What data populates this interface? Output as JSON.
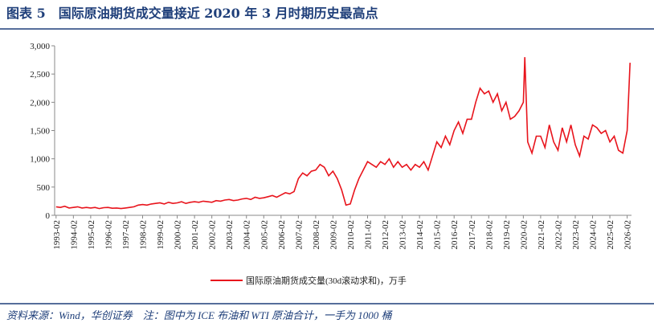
{
  "chart_data": {
    "type": "line",
    "title": "图表 5　国际原油期货成交量接近 2020 年 3 月时期历史最高点",
    "source": "资料来源：Wind，华创证券　注：图中为 ICE 布油和 WTI 原油合计，一手为 1000 桶",
    "x": [
      "1993-02",
      "1993-05",
      "1993-08",
      "1993-11",
      "1994-02",
      "1994-05",
      "1994-08",
      "1994-11",
      "1995-02",
      "1995-05",
      "1995-08",
      "1995-11",
      "1996-02",
      "1996-05",
      "1996-08",
      "1996-11",
      "1997-02",
      "1997-05",
      "1997-08",
      "1997-11",
      "1998-02",
      "1998-05",
      "1998-08",
      "1998-11",
      "1999-02",
      "1999-05",
      "1999-08",
      "1999-11",
      "2000-02",
      "2000-05",
      "2000-08",
      "2000-11",
      "2001-02",
      "2001-05",
      "2001-08",
      "2001-11",
      "2002-02",
      "2002-05",
      "2002-08",
      "2002-11",
      "2003-02",
      "2003-05",
      "2003-08",
      "2003-11",
      "2004-02",
      "2004-05",
      "2004-08",
      "2004-11",
      "2005-02",
      "2005-05",
      "2005-08",
      "2005-11",
      "2006-02",
      "2006-05",
      "2006-08",
      "2006-11",
      "2007-02",
      "2007-05",
      "2007-08",
      "2007-11",
      "2008-02",
      "2008-05",
      "2008-08",
      "2008-11",
      "2009-02",
      "2009-05",
      "2009-08",
      "2009-11",
      "2010-02",
      "2010-05",
      "2010-08",
      "2010-11",
      "2011-02",
      "2011-05",
      "2011-08",
      "2011-11",
      "2012-02",
      "2012-05",
      "2012-08",
      "2012-11",
      "2013-02",
      "2013-05",
      "2013-08",
      "2013-11",
      "2014-02",
      "2014-05",
      "2014-08",
      "2014-11",
      "2015-02",
      "2015-05",
      "2015-08",
      "2015-11",
      "2016-02",
      "2016-05",
      "2016-08",
      "2016-11",
      "2017-02",
      "2017-05",
      "2017-08",
      "2017-11",
      "2018-02",
      "2018-05",
      "2018-08",
      "2018-11",
      "2019-02",
      "2019-05",
      "2019-08",
      "2019-11",
      "2020-02",
      "2020-03",
      "2020-05",
      "2020-08",
      "2020-11",
      "2021-02",
      "2021-05",
      "2021-08",
      "2021-11",
      "2022-02",
      "2022-05",
      "2022-08",
      "2022-11",
      "2023-02",
      "2023-05",
      "2023-08",
      "2023-11",
      "2024-02",
      "2024-05",
      "2024-08",
      "2024-11",
      "2025-02",
      "2025-05",
      "2025-08",
      "2025-11",
      "2026-02",
      "2026-04"
    ],
    "series": [
      {
        "name": "国际原油期货成交量(30d滚动求和)，万手",
        "color": "#e8141c",
        "values": [
          150,
          140,
          160,
          130,
          140,
          150,
          130,
          140,
          130,
          140,
          120,
          135,
          140,
          125,
          130,
          120,
          130,
          140,
          150,
          180,
          190,
          180,
          200,
          210,
          220,
          200,
          230,
          210,
          220,
          240,
          210,
          230,
          240,
          230,
          250,
          240,
          230,
          260,
          250,
          270,
          280,
          260,
          270,
          290,
          300,
          280,
          320,
          300,
          310,
          330,
          350,
          320,
          360,
          400,
          380,
          420,
          650,
          750,
          700,
          780,
          800,
          900,
          850,
          700,
          780,
          650,
          450,
          180,
          200,
          450,
          650,
          800,
          950,
          900,
          850,
          950,
          900,
          1000,
          850,
          950,
          850,
          900,
          800,
          900,
          850,
          950,
          800,
          1050,
          1300,
          1200,
          1400,
          1250,
          1500,
          1650,
          1450,
          1700,
          1700,
          2000,
          2250,
          2150,
          2200,
          2000,
          2150,
          1850,
          2000,
          1700,
          1750,
          1850,
          2000,
          2800,
          1300,
          1100,
          1400,
          1400,
          1200,
          1600,
          1300,
          1150,
          1550,
          1300,
          1600,
          1250,
          1050,
          1400,
          1350,
          1600,
          1550,
          1450,
          1500,
          1300,
          1400,
          1150,
          1100,
          1500,
          2700
        ]
      }
    ],
    "xlim": [
      "1993-01",
      "2026-05"
    ],
    "xticks": [
      "1993-02",
      "1994-02",
      "1995-02",
      "1996-02",
      "1997-02",
      "1998-02",
      "1999-02",
      "2000-02",
      "2001-02",
      "2002-02",
      "2003-02",
      "2004-02",
      "2005-02",
      "2006-02",
      "2007-02",
      "2008-02",
      "2009-02",
      "2010-02",
      "2011-02",
      "2012-02",
      "2013-02",
      "2014-02",
      "2015-02",
      "2016-02",
      "2017-02",
      "2018-02",
      "2019-02",
      "2020-02",
      "2021-02",
      "2022-02",
      "2023-02",
      "2024-02",
      "2025-02",
      "2026-02"
    ],
    "ylim": [
      0,
      3000
    ],
    "yticks": [
      0,
      500,
      {
        "value": 1000,
        "label": "1,000"
      },
      {
        "value": 1500,
        "label": "1,500"
      },
      {
        "value": 2000,
        "label": "2,000"
      },
      {
        "value": 2500,
        "label": "2,500"
      },
      {
        "value": 3000,
        "label": "3,000"
      }
    ]
  }
}
